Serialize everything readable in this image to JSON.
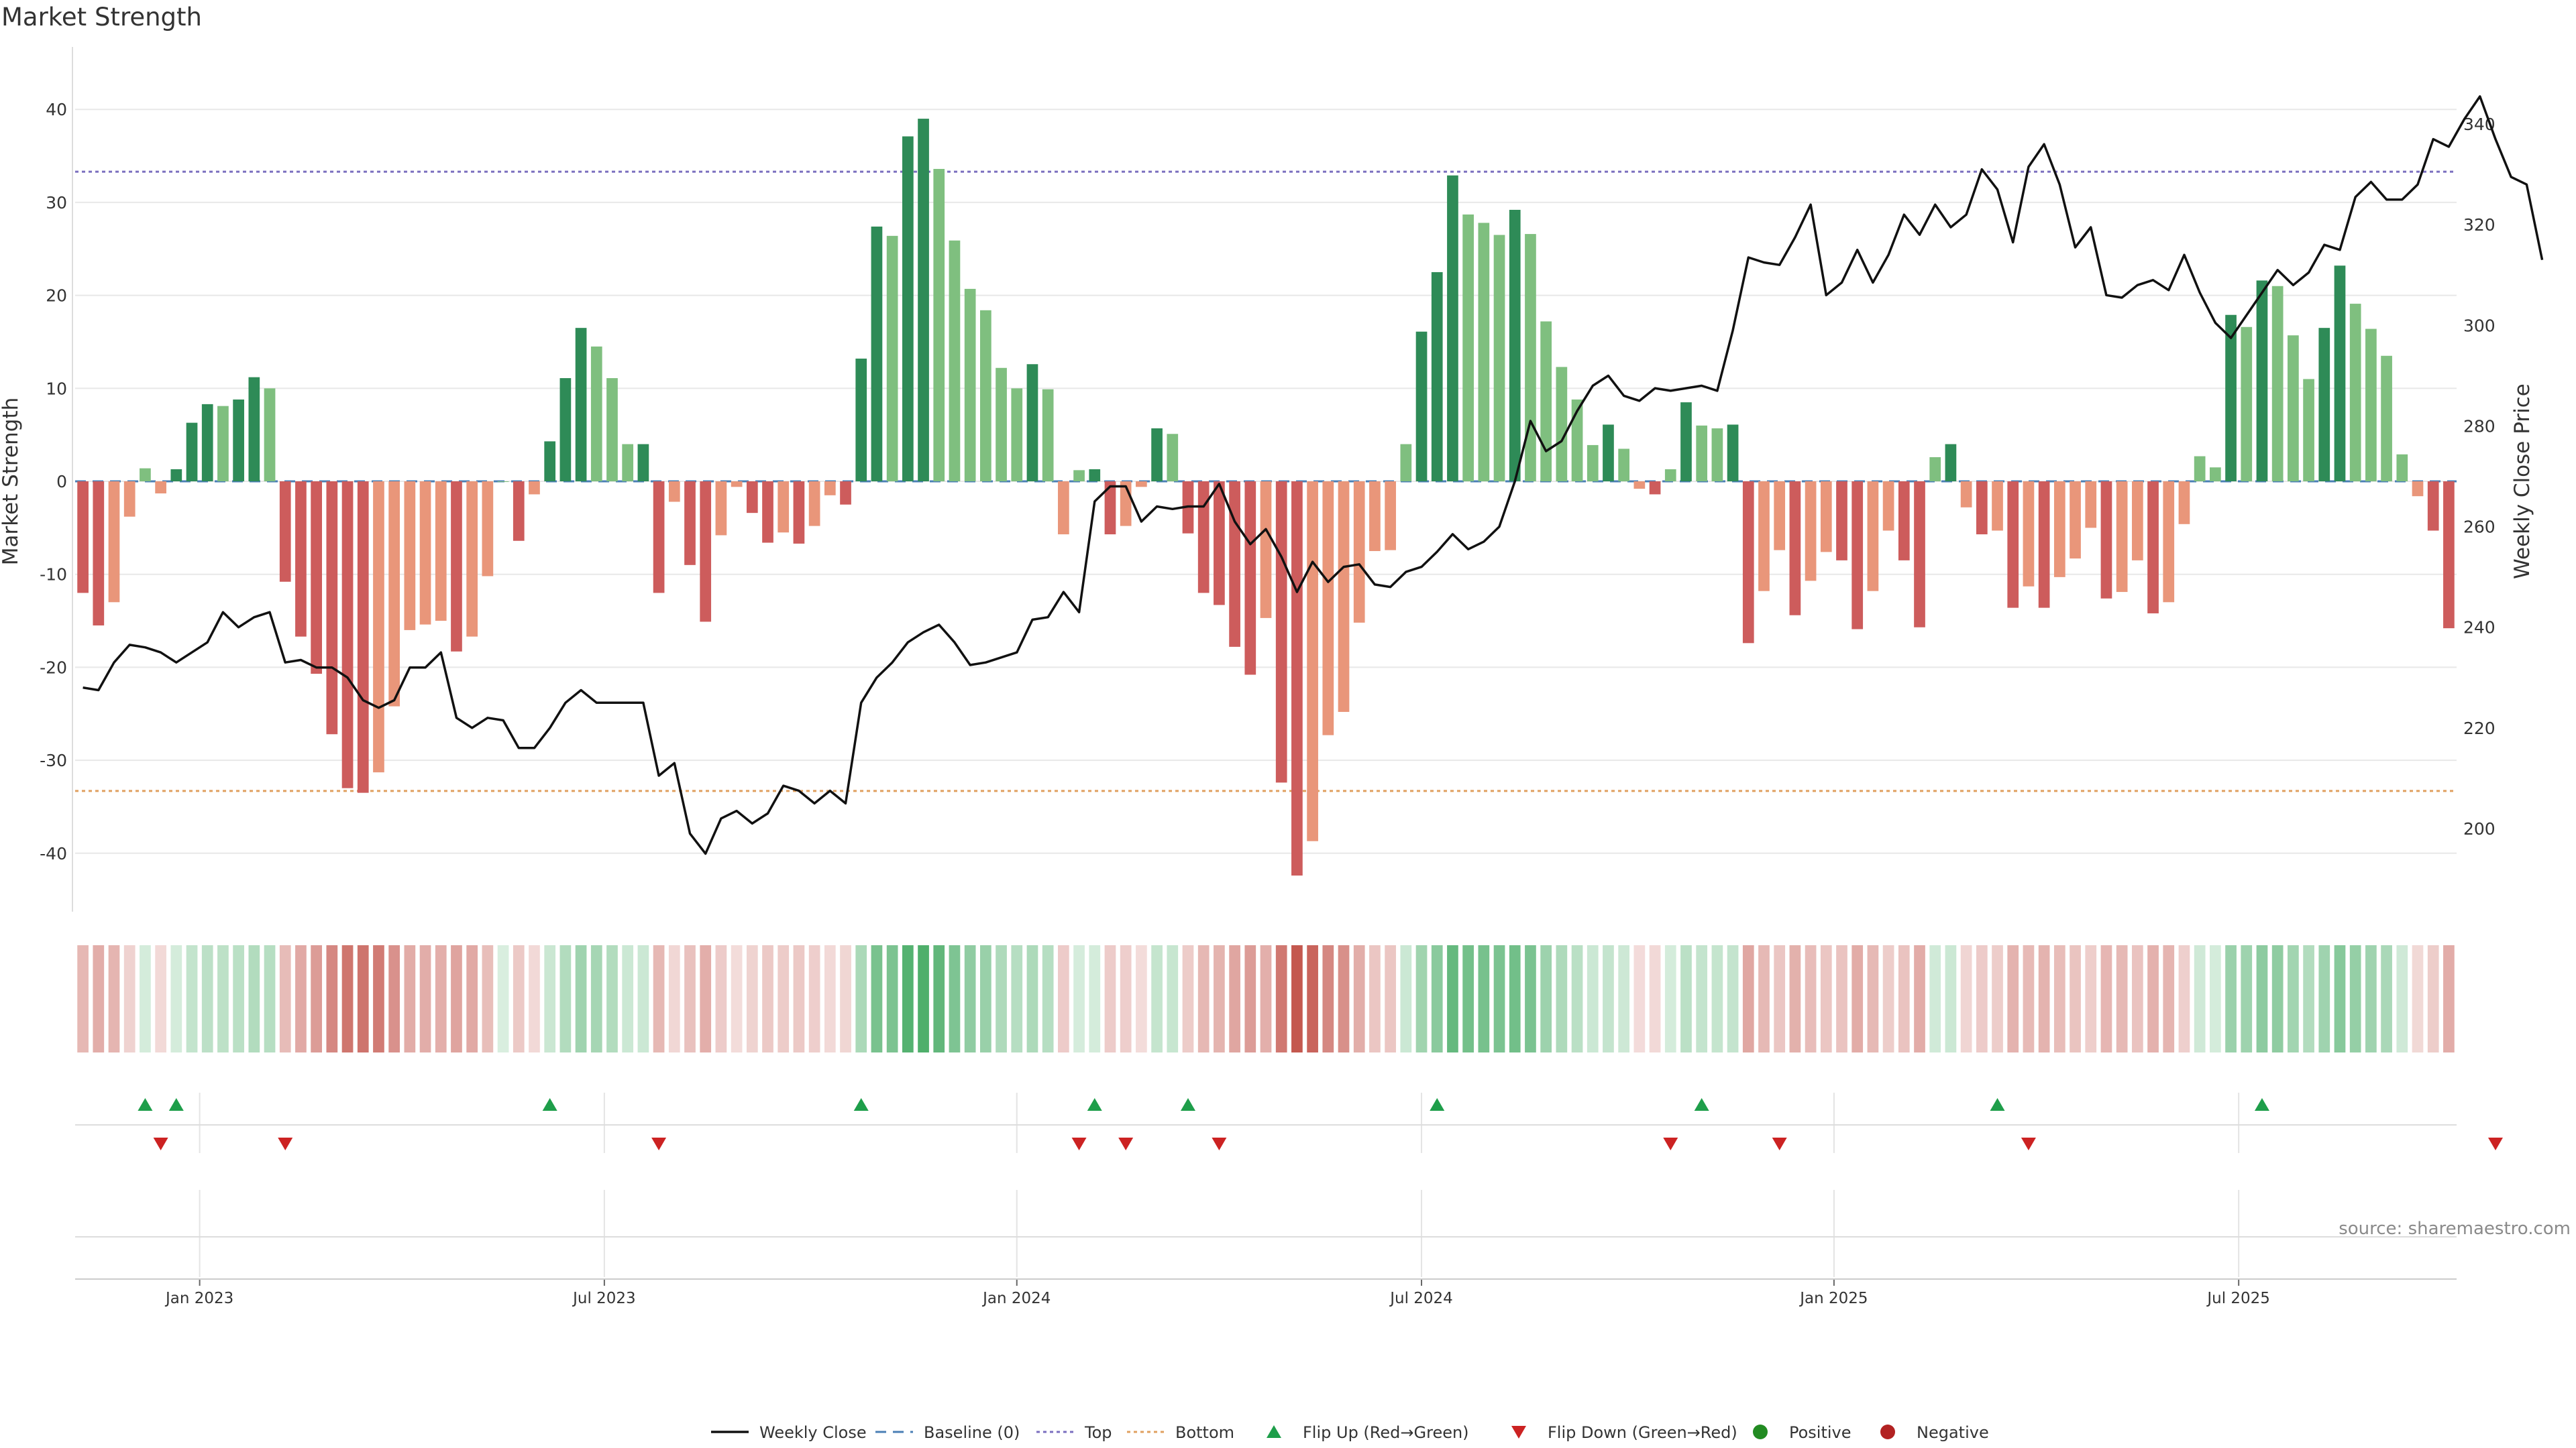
{
  "chart_data": {
    "type": "bar",
    "title": "Market Strength",
    "ylabel": "Market Strength",
    "y2label": "Weekly Close Price",
    "ylim": [
      -46,
      46
    ],
    "y2lim": [
      184,
      354
    ],
    "yticks": [
      -40,
      -30,
      -20,
      -10,
      0,
      10,
      20,
      30,
      40
    ],
    "y2ticks": [
      200,
      220,
      240,
      260,
      280,
      300,
      320,
      340
    ],
    "top_threshold": 33.3,
    "bottom_threshold": -33.3,
    "xticks": [
      {
        "label": "Jan 2023",
        "week": 8
      },
      {
        "label": "Jul 2023",
        "week": 34
      },
      {
        "label": "Jan 2024",
        "week": 60.5
      },
      {
        "label": "Jul 2024",
        "week": 86.5
      },
      {
        "label": "Jan 2025",
        "week": 113
      },
      {
        "label": "Jul 2025",
        "week": 139
      }
    ],
    "series": [
      {
        "name": "Market Strength",
        "values": [
          -12,
          -15.5,
          -13,
          -3.8,
          1.4,
          -1.3,
          1.3,
          6.3,
          8.3,
          8.1,
          8.8,
          11.2,
          10,
          -10.8,
          -16.7,
          -20.7,
          -27.2,
          -33,
          -33.5,
          -31.3,
          -24.2,
          -16,
          -15.4,
          -15,
          -18.3,
          -16.7,
          -10.2,
          0,
          -6.4,
          -1.4,
          4.3,
          11.1,
          16.5,
          14.5,
          11.1,
          4,
          4,
          -12,
          -2.2,
          -9,
          -15.1,
          -5.8,
          -0.6,
          -3.4,
          -6.6,
          -5.5,
          -6.7,
          -4.8,
          -1.5,
          -2.5,
          13.2,
          27.4,
          26.4,
          37.1,
          39,
          33.6,
          25.9,
          20.7,
          18.4,
          12.2,
          10,
          12.6,
          9.9,
          -5.7,
          1.2,
          1.3,
          -5.7,
          -4.8,
          -0.6,
          5.7,
          5.1,
          -5.6,
          -12,
          -13.3,
          -17.8,
          -20.8,
          -14.7,
          -32.4,
          -42.4,
          -38.7,
          -27.3,
          -24.8,
          -15.2,
          -7.5,
          -7.4,
          4,
          16.1,
          22.5,
          32.9,
          28.7,
          27.8,
          26.5,
          29.2,
          26.6,
          17.2,
          12.3,
          8.8,
          3.9,
          6.1,
          3.5,
          -0.8,
          -1.4,
          1.3,
          8.5,
          6,
          5.7,
          6.1,
          -17.4,
          -11.8,
          -7.4,
          -14.4,
          -10.7,
          -7.6,
          -8.5,
          -15.9,
          -11.8,
          -5.3,
          -8.5,
          -15.7,
          2.6,
          4,
          -2.8,
          -5.7,
          -5.3,
          -13.6,
          -11.3,
          -13.6,
          -10.3,
          -8.3,
          -5,
          -12.6,
          -11.9,
          -8.5,
          -14.2,
          -13,
          -4.6,
          2.7,
          1.5,
          17.9,
          16.6,
          21.6,
          21,
          15.7,
          11,
          16.5,
          23.2,
          19.1,
          16.4,
          13.5,
          2.9,
          -1.6,
          -5.3,
          -15.8
        ]
      },
      {
        "name": "Weekly Close",
        "values": [
          228,
          227.5,
          233,
          236.5,
          236,
          235,
          233,
          235,
          237,
          243,
          240,
          242,
          243,
          233,
          233.5,
          232,
          232,
          230,
          225.5,
          224,
          225.5,
          232,
          232,
          235,
          222,
          220,
          222,
          221.5,
          216,
          216,
          220,
          225,
          227.5,
          225,
          225,
          225,
          225,
          210.5,
          213,
          199,
          195,
          202,
          203.5,
          201,
          203,
          208.5,
          207.5,
          205,
          207.5,
          205,
          225,
          230,
          233,
          237,
          239,
          240.5,
          237,
          232.5,
          233,
          234,
          235,
          241.5,
          242,
          247,
          243,
          265,
          268,
          268,
          261,
          264,
          263.5,
          264,
          264,
          268.5,
          261,
          256.5,
          259.5,
          254,
          247,
          253,
          249,
          252,
          252.5,
          248.5,
          248,
          251,
          252,
          255,
          258.5,
          255.5,
          257,
          260,
          269,
          281,
          275,
          277,
          283,
          288,
          290,
          286,
          285,
          287.5,
          287,
          287.5,
          288,
          287,
          299,
          313.5,
          312.5,
          312,
          317.5,
          324,
          306,
          308.5,
          315,
          308.5,
          314,
          322,
          318,
          324,
          319.5,
          322,
          331,
          327,
          316.5,
          331.5,
          336,
          328,
          315.5,
          319.5,
          306,
          305.5,
          308,
          309,
          307,
          314,
          306.5,
          300.5,
          297.5,
          302,
          306.5,
          311,
          308,
          310.5,
          316,
          315,
          325.5,
          328.5,
          325,
          325,
          328,
          337,
          335.5,
          341,
          345.5,
          337,
          329.5,
          328,
          313
        ]
      }
    ],
    "flip_up_weeks": [
      4,
      6,
      30,
      50,
      65,
      71,
      87,
      104,
      123,
      140
    ],
    "flip_down_weeks": [
      5,
      13,
      37,
      64,
      67,
      73,
      102,
      109,
      125,
      155
    ],
    "colors": {
      "strong_green": "#2e8b57",
      "light_green": "#7fbf7f",
      "strong_red": "#cd5c5c",
      "light_red": "#e9967a",
      "price_line": "#111111",
      "top_line": "#7b6fbf",
      "bottom_line": "#e0a060",
      "baseline": "#4a7fb5",
      "flip_up": "#1e9e4a",
      "flip_down": "#cc2222"
    },
    "legend": {
      "placement": "bottom-center",
      "items": [
        {
          "label": "Weekly Close",
          "icon": "solid-line"
        },
        {
          "label": "Baseline (0)",
          "icon": "dashed-line"
        },
        {
          "label": "Top",
          "icon": "dotted-line"
        },
        {
          "label": "Bottom",
          "icon": "dotted-line"
        },
        {
          "label": "Flip Up (Red→Green)",
          "icon": "triangle-up"
        },
        {
          "label": "Flip Down (Green→Red)",
          "icon": "triangle-down"
        },
        {
          "label": "Positive",
          "icon": "green-dot"
        },
        {
          "label": "Negative",
          "icon": "red-dot"
        }
      ]
    },
    "source": "source: sharemaestro.com"
  }
}
